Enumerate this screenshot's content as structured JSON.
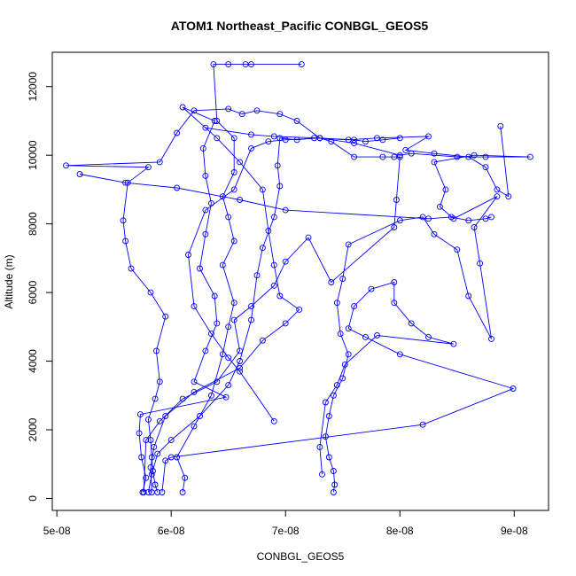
{
  "chart_data": {
    "type": "scatter",
    "title": "ATOM1 Northeast_Pacific CONBGL_GEOS5",
    "xlabel": "CONBGL_GEOS5",
    "ylabel": "Altitude (m)",
    "xlim": [
      4.96e-08,
      9.3e-08
    ],
    "ylim": [
      -350,
      13000
    ],
    "xticks": [
      5e-08,
      6e-08,
      7e-08,
      8e-08,
      9e-08
    ],
    "xtick_labels": [
      "5e-08",
      "6e-08",
      "7e-08",
      "8e-08",
      "9e-08"
    ],
    "yticks": [
      0,
      2000,
      4000,
      6000,
      8000,
      10000,
      12000
    ],
    "ytick_labels": [
      "0",
      "2000",
      "4000",
      "6000",
      "8000",
      "10000",
      "12000"
    ],
    "grid": false,
    "color": "#0000ff",
    "marker": "open-circle",
    "connected": true,
    "series": [
      {
        "name": "",
        "points": [
          [
            5.88e-08,
            180
          ],
          [
            5.86e-08,
            400
          ],
          [
            5.84e-08,
            800
          ],
          [
            5.83e-08,
            1200
          ],
          [
            5.82e-08,
            1700
          ],
          [
            5.8e-08,
            2300
          ],
          [
            5.86e-08,
            2900
          ],
          [
            5.9e-08,
            3400
          ],
          [
            5.87e-08,
            4300
          ],
          [
            5.95e-08,
            5300
          ],
          [
            5.82e-08,
            6000
          ],
          [
            5.65e-08,
            6700
          ],
          [
            5.6e-08,
            7500
          ],
          [
            5.58e-08,
            8100
          ],
          [
            5.62e-08,
            9200
          ],
          [
            5.8e-08,
            9650
          ],
          [
            5.08e-08,
            9700
          ],
          [
            5.9e-08,
            9800
          ],
          [
            6.05e-08,
            10650
          ],
          [
            6.2e-08,
            11300
          ],
          [
            6.5e-08,
            11350
          ],
          [
            6.62e-08,
            11200
          ],
          [
            6.75e-08,
            11300
          ],
          [
            6.95e-08,
            11200
          ],
          [
            7.1e-08,
            11000
          ],
          [
            7.3e-08,
            10500
          ],
          [
            7.6e-08,
            10350
          ],
          [
            8e-08,
            10000
          ],
          [
            8.1e-08,
            10050
          ],
          [
            8.5e-08,
            9950
          ],
          [
            8.75e-08,
            9950
          ],
          [
            9.14e-08,
            9950
          ],
          [
            8.65e-08,
            10000
          ],
          [
            8.3e-08,
            9800
          ],
          [
            8.4e-08,
            9000
          ],
          [
            8.35e-08,
            8500
          ],
          [
            8.47e-08,
            8150
          ],
          [
            8.85e-08,
            8800
          ],
          [
            8.65e-08,
            7900
          ],
          [
            8.7e-08,
            6850
          ],
          [
            8.8e-08,
            4650
          ],
          [
            8.6e-08,
            5900
          ],
          [
            8.5e-08,
            7250
          ],
          [
            8.3e-08,
            7700
          ],
          [
            8.2e-08,
            8200
          ],
          [
            8e-08,
            8100
          ],
          [
            7.55e-08,
            7400
          ],
          [
            7.5e-08,
            6400
          ],
          [
            7.45e-08,
            5700
          ],
          [
            7.48e-08,
            4800
          ],
          [
            7.55e-08,
            4200
          ],
          [
            7.5e-08,
            3500
          ],
          [
            7.42e-08,
            3000
          ],
          [
            7.38e-08,
            2400
          ],
          [
            7.35e-08,
            1800
          ],
          [
            7.38e-08,
            1200
          ],
          [
            7.42e-08,
            800
          ],
          [
            7.43e-08,
            400
          ],
          [
            7.42e-08,
            180
          ]
        ]
      },
      {
        "name": "",
        "points": [
          [
            6.1e-08,
            180
          ],
          [
            6.12e-08,
            600
          ],
          [
            6.05e-08,
            1200
          ],
          [
            6.2e-08,
            2100
          ],
          [
            6.35e-08,
            3000
          ],
          [
            6.45e-08,
            4200
          ],
          [
            6.5e-08,
            5000
          ],
          [
            6.55e-08,
            5700
          ],
          [
            6.45e-08,
            6800
          ],
          [
            6.55e-08,
            7500
          ],
          [
            6.5e-08,
            8200
          ],
          [
            6.45e-08,
            8800
          ],
          [
            6.55e-08,
            9500
          ],
          [
            6.55e-08,
            10500
          ],
          [
            6.4e-08,
            11000
          ],
          [
            6.37e-08,
            12650
          ],
          [
            6.5e-08,
            12650
          ],
          [
            6.65e-08,
            12650
          ],
          [
            6.7e-08,
            12650
          ],
          [
            7.14e-08,
            12650
          ]
        ]
      },
      {
        "name": "",
        "points": [
          [
            5.75e-08,
            180
          ],
          [
            5.78e-08,
            600
          ],
          [
            5.74e-08,
            1200
          ],
          [
            5.72e-08,
            1900
          ],
          [
            5.73e-08,
            2450
          ],
          [
            6.48e-08,
            2950
          ],
          [
            6.2e-08,
            3400
          ],
          [
            6.3e-08,
            4300
          ],
          [
            6.4e-08,
            5100
          ],
          [
            6.38e-08,
            5900
          ],
          [
            6.25e-08,
            6700
          ],
          [
            6.3e-08,
            7700
          ],
          [
            6.35e-08,
            8600
          ],
          [
            6.3e-08,
            9400
          ],
          [
            6.28e-08,
            10200
          ],
          [
            6.38e-08,
            11000
          ],
          [
            6.1e-08,
            11400
          ],
          [
            6.4e-08,
            10500
          ],
          [
            6.6e-08,
            9800
          ],
          [
            6.8e-08,
            9000
          ],
          [
            6.85e-08,
            7800
          ],
          [
            6.9e-08,
            6800
          ],
          [
            6.95e-08,
            5900
          ],
          [
            7.12e-08,
            5500
          ],
          [
            7e-08,
            5100
          ],
          [
            6.8e-08,
            4600
          ],
          [
            6.6e-08,
            3800
          ],
          [
            6.2e-08,
            3100
          ],
          [
            5.95e-08,
            2400
          ],
          [
            5.85e-08,
            1500
          ],
          [
            5.82e-08,
            900
          ],
          [
            5.83e-08,
            180
          ]
        ]
      },
      {
        "name": "",
        "points": [
          [
            5.8e-08,
            180
          ],
          [
            5.83e-08,
            700
          ],
          [
            5.88e-08,
            1300
          ],
          [
            6e-08,
            1700
          ],
          [
            6.25e-08,
            2400
          ],
          [
            6.5e-08,
            3300
          ],
          [
            6.6e-08,
            4000
          ],
          [
            6.7e-08,
            5200
          ],
          [
            6.75e-08,
            6500
          ],
          [
            6.8e-08,
            7300
          ],
          [
            6.9e-08,
            8200
          ],
          [
            6.95e-08,
            9100
          ],
          [
            6.93e-08,
            9700
          ],
          [
            6.95e-08,
            10500
          ],
          [
            7.1e-08,
            10450
          ],
          [
            7.25e-08,
            10500
          ],
          [
            7.55e-08,
            10450
          ],
          [
            7.8e-08,
            10500
          ],
          [
            8.25e-08,
            10550
          ],
          [
            8.05e-08,
            10150
          ],
          [
            8.3e-08,
            10050
          ],
          [
            8.6e-08,
            9950
          ],
          [
            8.75e-08,
            9650
          ],
          [
            8.85e-08,
            9000
          ],
          [
            8.95e-08,
            8800
          ],
          [
            8.88e-08,
            10850
          ]
        ]
      },
      {
        "name": "",
        "points": [
          [
            5.92e-08,
            180
          ],
          [
            5.95e-08,
            1100
          ],
          [
            6e-08,
            1200
          ],
          [
            8.2e-08,
            2150
          ],
          [
            8.99e-08,
            3200
          ],
          [
            8e-08,
            4200
          ],
          [
            7.7e-08,
            4700
          ],
          [
            7.55e-08,
            4950
          ],
          [
            7.6e-08,
            5600
          ],
          [
            7.75e-08,
            6100
          ],
          [
            7.95e-08,
            6300
          ],
          [
            7.95e-08,
            5700
          ],
          [
            8.1e-08,
            5100
          ],
          [
            8.25e-08,
            4700
          ],
          [
            8.47e-08,
            4500
          ],
          [
            7.8e-08,
            4750
          ],
          [
            7.52e-08,
            3900
          ],
          [
            7.45e-08,
            3300
          ],
          [
            7.35e-08,
            2800
          ],
          [
            7.3e-08,
            1500
          ],
          [
            7.32e-08,
            700
          ]
        ]
      },
      {
        "name": "",
        "points": [
          [
            6.9e-08,
            2250
          ],
          [
            6.6e-08,
            3700
          ],
          [
            6.5e-08,
            4100
          ],
          [
            6.35e-08,
            4800
          ],
          [
            6.2e-08,
            5600
          ],
          [
            6.15e-08,
            7100
          ],
          [
            6.3e-08,
            8400
          ],
          [
            6.55e-08,
            9000
          ],
          [
            6.7e-08,
            10200
          ],
          [
            6.85e-08,
            10400
          ],
          [
            7e-08,
            10450
          ],
          [
            7.3e-08,
            10500
          ],
          [
            7.4e-08,
            10400
          ],
          [
            7.6e-08,
            9950
          ],
          [
            7.85e-08,
            9950
          ],
          [
            7.95e-08,
            9950
          ],
          [
            8e-08,
            9950
          ],
          [
            7.97e-08,
            8700
          ],
          [
            7.95e-08,
            7900
          ],
          [
            7.4e-08,
            6300
          ],
          [
            7.2e-08,
            7600
          ],
          [
            7e-08,
            6900
          ],
          [
            6.9e-08,
            6200
          ],
          [
            6.7e-08,
            5600
          ],
          [
            6.55e-08,
            5200
          ],
          [
            6.6e-08,
            4300
          ],
          [
            6.4e-08,
            3400
          ],
          [
            6.1e-08,
            2900
          ],
          [
            5.9e-08,
            2250
          ],
          [
            5.78e-08,
            1700
          ],
          [
            5.76e-08,
            180
          ]
        ]
      },
      {
        "name": "",
        "points": [
          [
            5.2e-08,
            9450
          ],
          [
            5.6e-08,
            9200
          ],
          [
            6.05e-08,
            9050
          ],
          [
            6.6e-08,
            8700
          ],
          [
            7e-08,
            8400
          ],
          [
            8.25e-08,
            8150
          ],
          [
            8.45e-08,
            8200
          ],
          [
            8.6e-08,
            8100
          ],
          [
            8.75e-08,
            8150
          ],
          [
            8.8e-08,
            8200
          ]
        ]
      },
      {
        "name": "",
        "points": [
          [
            6.3e-08,
            10800
          ],
          [
            6.7e-08,
            10600
          ],
          [
            6.9e-08,
            10550
          ],
          [
            7.3e-08,
            10500
          ],
          [
            7.6e-08,
            10450
          ],
          [
            7.7e-08,
            10400
          ],
          [
            7.85e-08,
            10450
          ],
          [
            8e-08,
            10500
          ]
        ]
      }
    ]
  }
}
